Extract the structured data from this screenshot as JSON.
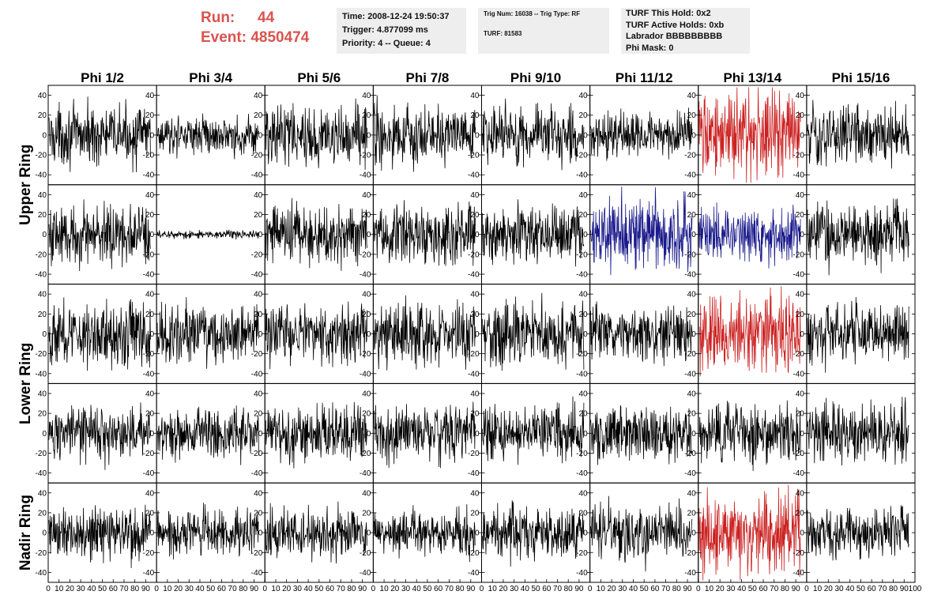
{
  "header": {
    "run_label": "Run:",
    "run_value": "44",
    "event_label": "Event:",
    "event_value": "4850474",
    "info1": [
      "Time: 2008-12-24 19:50:37",
      "Trigger: 4.877099 ms",
      "Priority: 4 -- Queue: 4"
    ],
    "info2": [
      "Trig Num: 16038 -- Trig Type: RF",
      "TURF: 81583"
    ],
    "info3": [
      "TURF This Hold: 0x2",
      "TURF Active Holds: 0xb",
      "Labrador BBBBBBBBB",
      "Phi Mask: 0"
    ]
  },
  "colors": {
    "normal": "#000000",
    "triggered_hold": "#cc2222",
    "active_hold": "#1a1a8c",
    "header_red": "#d9534f",
    "info_bg": "#eeeeee"
  },
  "chart_data": {
    "type": "line",
    "columns": [
      "Phi 1/2",
      "Phi 3/4",
      "Phi 5/6",
      "Phi 7/8",
      "Phi 9/10",
      "Phi 11/12",
      "Phi 13/14",
      "Phi 15/16"
    ],
    "rows": [
      "Upper Ring",
      "Lower Ring",
      "Nadir Ring"
    ],
    "row_label_positions": [
      {
        "label": "Upper Ring",
        "spans_panel_rows": [
          0,
          1
        ]
      },
      {
        "label": "Lower Ring",
        "spans_panel_rows": [
          2,
          3
        ]
      },
      {
        "label": "Nadir Ring",
        "spans_panel_rows": [
          4,
          4
        ]
      }
    ],
    "panel_rows": 5,
    "ylim": [
      -50,
      50
    ],
    "yticks": [
      -40,
      -20,
      0,
      20,
      40
    ],
    "xlim": [
      0,
      100
    ],
    "xticks": [
      0,
      10,
      20,
      30,
      40,
      50,
      60,
      70,
      80,
      90,
      100
    ],
    "xtick_labels": [
      "0",
      "10",
      "20",
      "30",
      "40",
      "50",
      "60",
      "70",
      "80",
      "90",
      "100"
    ],
    "samples_per_trace": 260,
    "panels": [
      [
        {
          "amp": 14,
          "color": "normal"
        },
        {
          "amp": 9,
          "color": "normal"
        },
        {
          "amp": 15,
          "color": "normal"
        },
        {
          "amp": 15,
          "color": "normal"
        },
        {
          "amp": 15,
          "color": "normal"
        },
        {
          "amp": 11,
          "color": "normal"
        },
        {
          "amp": 22,
          "color": "triggered_hold"
        },
        {
          "amp": 15,
          "color": "normal"
        }
      ],
      [
        {
          "amp": 15,
          "color": "normal"
        },
        {
          "amp": 2,
          "color": "normal"
        },
        {
          "amp": 15,
          "color": "normal"
        },
        {
          "amp": 15,
          "color": "normal"
        },
        {
          "amp": 14,
          "color": "normal"
        },
        {
          "amp": 18,
          "color": "active_hold"
        },
        {
          "amp": 13,
          "color": "active_hold"
        },
        {
          "amp": 15,
          "color": "normal"
        }
      ],
      [
        {
          "amp": 16,
          "color": "normal"
        },
        {
          "amp": 14,
          "color": "normal"
        },
        {
          "amp": 14,
          "color": "normal"
        },
        {
          "amp": 15,
          "color": "normal"
        },
        {
          "amp": 16,
          "color": "normal"
        },
        {
          "amp": 14,
          "color": "normal"
        },
        {
          "amp": 19,
          "color": "triggered_hold"
        },
        {
          "amp": 15,
          "color": "normal"
        }
      ],
      [
        {
          "amp": 13,
          "color": "normal"
        },
        {
          "amp": 13,
          "color": "normal"
        },
        {
          "amp": 14,
          "color": "normal"
        },
        {
          "amp": 14,
          "color": "normal"
        },
        {
          "amp": 13,
          "color": "normal"
        },
        {
          "amp": 13,
          "color": "normal"
        },
        {
          "amp": 14,
          "color": "normal"
        },
        {
          "amp": 14,
          "color": "normal"
        }
      ],
      [
        {
          "amp": 14,
          "color": "normal"
        },
        {
          "amp": 11,
          "color": "normal"
        },
        {
          "amp": 12,
          "color": "normal"
        },
        {
          "amp": 11,
          "color": "normal"
        },
        {
          "amp": 13,
          "color": "normal"
        },
        {
          "amp": 14,
          "color": "normal"
        },
        {
          "amp": 21,
          "color": "triggered_hold"
        },
        {
          "amp": 12,
          "color": "normal"
        }
      ]
    ]
  }
}
